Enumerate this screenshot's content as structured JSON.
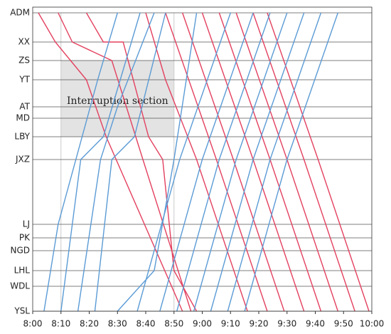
{
  "chart_data": {
    "type": "line",
    "annotation": "Interruption section",
    "shaded_region": {
      "xlim": [
        490,
        530
      ],
      "ylim": [
        245,
        352
      ]
    },
    "vlines": [
      490,
      530
    ],
    "xlim": [
      480,
      600
    ],
    "xticks": [
      {
        "value": 480,
        "label": "8:00"
      },
      {
        "value": 490,
        "label": "8:10"
      },
      {
        "value": 500,
        "label": "8:20"
      },
      {
        "value": 510,
        "label": "8:30"
      },
      {
        "value": 520,
        "label": "8:40"
      },
      {
        "value": 530,
        "label": "8:50"
      },
      {
        "value": 540,
        "label": "9:00"
      },
      {
        "value": 550,
        "label": "9:10"
      },
      {
        "value": 560,
        "label": "9:20"
      },
      {
        "value": 570,
        "label": "9:30"
      },
      {
        "value": 580,
        "label": "9:40"
      },
      {
        "value": 590,
        "label": "9:50"
      },
      {
        "value": 600,
        "label": "10:00"
      }
    ],
    "ylim": [
      0,
      419
    ],
    "yticks": [
      {
        "value": 419,
        "label": "ADM"
      },
      {
        "value": 378,
        "label": "XX"
      },
      {
        "value": 352,
        "label": "ZS"
      },
      {
        "value": 325,
        "label": "YT"
      },
      {
        "value": 287,
        "label": "AT"
      },
      {
        "value": 271,
        "label": "MD"
      },
      {
        "value": 245,
        "label": "LBY"
      },
      {
        "value": 213,
        "label": "JXZ"
      },
      {
        "value": 122,
        "label": "LJ"
      },
      {
        "value": 103,
        "label": "PK"
      },
      {
        "value": 85,
        "label": "NGD"
      },
      {
        "value": 57,
        "label": "LHL"
      },
      {
        "value": 35,
        "label": "WDL"
      },
      {
        "value": 0,
        "label": "YSL"
      }
    ],
    "grid": true,
    "series": [
      {
        "color": "#e3405f",
        "x": [
          482,
          488,
          499,
          506,
          533
        ],
        "values": [
          419,
          378,
          325,
          245,
          0
        ]
      },
      {
        "color": "#e3405f",
        "x": [
          489,
          494,
          508,
          519,
          536
        ],
        "values": [
          419,
          378,
          352,
          213,
          0
        ]
      },
      {
        "color": "#e3405f",
        "x": [
          499,
          505,
          512,
          521,
          526,
          530,
          538
        ],
        "values": [
          419,
          378,
          378,
          245,
          213,
          57,
          0
        ]
      },
      {
        "color": "#e3405f",
        "x": [
          520,
          527,
          538,
          556
        ],
        "values": [
          419,
          325,
          213,
          0
        ]
      },
      {
        "color": "#e3405f",
        "x": [
          527,
          545,
          563
        ],
        "values": [
          419,
          213,
          0
        ]
      },
      {
        "color": "#e3405f",
        "x": [
          533,
          551,
          569
        ],
        "values": [
          419,
          213,
          0
        ]
      },
      {
        "color": "#e3405f",
        "x": [
          540,
          558,
          576
        ],
        "values": [
          419,
          213,
          0
        ]
      },
      {
        "color": "#e3405f",
        "x": [
          546,
          564,
          582
        ],
        "values": [
          419,
          213,
          0
        ]
      },
      {
        "color": "#e3405f",
        "x": [
          552,
          570,
          588
        ],
        "values": [
          419,
          213,
          0
        ]
      },
      {
        "color": "#e3405f",
        "x": [
          558,
          576,
          594
        ],
        "values": [
          419,
          213,
          0
        ]
      },
      {
        "color": "#e3405f",
        "x": [
          563,
          581,
          599
        ],
        "values": [
          419,
          213,
          0
        ]
      },
      {
        "color": "#5b9bd5",
        "x": [
          484,
          489,
          503,
          510
        ],
        "values": [
          0,
          122,
          325,
          419
        ]
      },
      {
        "color": "#5b9bd5",
        "x": [
          490,
          497,
          505,
          518
        ],
        "values": [
          0,
          213,
          245,
          419
        ]
      },
      {
        "color": "#5b9bd5",
        "x": [
          496,
          504,
          510,
          523
        ],
        "values": [
          0,
          213,
          287,
          419
        ]
      },
      {
        "color": "#5b9bd5",
        "x": [
          502,
          508,
          516,
          527
        ],
        "values": [
          0,
          213,
          245,
          419
        ]
      },
      {
        "color": "#5b9bd5",
        "x": [
          510,
          523,
          530,
          538
        ],
        "values": [
          0,
          57,
          213,
          419
        ]
      },
      {
        "color": "#5b9bd5",
        "x": [
          517,
          532,
          550
        ],
        "values": [
          0,
          213,
          419
        ]
      },
      {
        "color": "#5b9bd5",
        "x": [
          525,
          540,
          558
        ],
        "values": [
          0,
          213,
          419
        ]
      },
      {
        "color": "#5b9bd5",
        "x": [
          531,
          546,
          564
        ],
        "values": [
          0,
          213,
          419
        ]
      },
      {
        "color": "#5b9bd5",
        "x": [
          537,
          552,
          570
        ],
        "values": [
          0,
          213,
          419
        ]
      },
      {
        "color": "#5b9bd5",
        "x": [
          543,
          558,
          576
        ],
        "values": [
          0,
          213,
          419
        ]
      },
      {
        "color": "#5b9bd5",
        "x": [
          549,
          564,
          582
        ],
        "values": [
          0,
          213,
          419
        ]
      },
      {
        "color": "#5b9bd5",
        "x": [
          555,
          570,
          588
        ],
        "values": [
          0,
          213,
          419
        ]
      }
    ]
  }
}
